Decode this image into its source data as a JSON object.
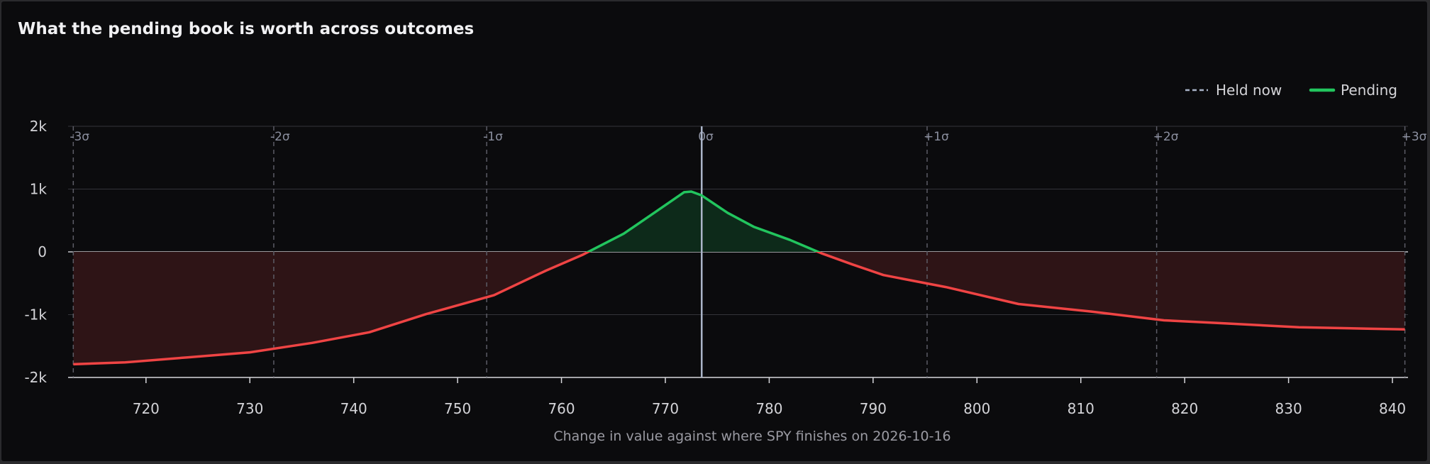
{
  "title": "What the pending book is worth across outcomes",
  "legend": [
    {
      "label": "Held now",
      "style": "dashed",
      "color": "#a9b3c8"
    },
    {
      "label": "Pending",
      "style": "solid",
      "color": "#22c55e"
    }
  ],
  "colors": {
    "positive": "#22c55e",
    "negative": "#ef4444",
    "positive_fill": "#0d2a1a",
    "negative_fill": "#2e1416",
    "grid": "#34343a",
    "sigma_line": "#5c5c66",
    "current_line": "#aab4c8"
  },
  "chart_data": {
    "type": "line",
    "title": "What the pending book is worth across outcomes",
    "xlabel": "Change in value against where SPY finishes on 2026-10-16",
    "ylabel": "",
    "xlim": [
      712.5,
      841.5
    ],
    "ylim": [
      -2000,
      2000
    ],
    "x_ticks": [
      720,
      730,
      740,
      750,
      760,
      770,
      780,
      790,
      800,
      810,
      820,
      830,
      840
    ],
    "y_ticks": [
      {
        "value": 2000,
        "label": "2k"
      },
      {
        "value": 1000,
        "label": "1k"
      },
      {
        "value": 0,
        "label": "0"
      },
      {
        "value": -1000,
        "label": "-1k"
      },
      {
        "value": -2000,
        "label": "-2k"
      }
    ],
    "current_price": 773.5,
    "sigma_lines": [
      {
        "label": "-3σ",
        "x": 713.0
      },
      {
        "label": "-2σ",
        "x": 732.3
      },
      {
        "label": "-1σ",
        "x": 752.8
      },
      {
        "label": "0σ",
        "x": 773.5
      },
      {
        "label": "+1σ",
        "x": 795.2
      },
      {
        "label": "+2σ",
        "x": 817.3
      },
      {
        "label": "+3σ",
        "x": 841.2
      }
    ],
    "series": [
      {
        "name": "Pending",
        "x": [
          713,
          718,
          724,
          730,
          736,
          741.5,
          747,
          753.5,
          758.5,
          762,
          766,
          769,
          771.8,
          772.5,
          773.5,
          776,
          778.5,
          782,
          785,
          788,
          791,
          797,
          804,
          811,
          818,
          824,
          831,
          838,
          841.2
        ],
        "y": [
          -1790,
          -1760,
          -1680,
          -1600,
          -1450,
          -1280,
          -990,
          -690,
          -300,
          -50,
          290,
          630,
          950,
          960,
          900,
          620,
          400,
          190,
          -20,
          -200,
          -370,
          -560,
          -830,
          -950,
          -1090,
          -1140,
          -1200,
          -1225,
          -1235
        ]
      }
    ]
  }
}
